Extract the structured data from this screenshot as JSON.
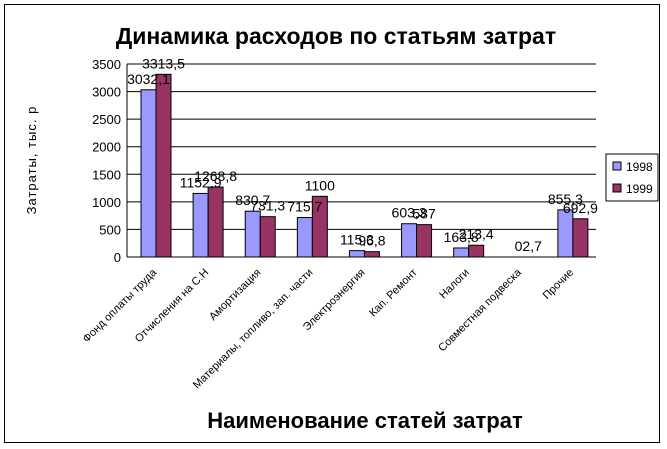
{
  "chart_data": {
    "type": "bar",
    "title": "Динамика расходов по статьям затрат",
    "xlabel": "Наименование статей затрат",
    "ylabel": "Затраты, тыс. р",
    "ylim": [
      0,
      3500
    ],
    "yticks": [
      0,
      500,
      1000,
      1500,
      2000,
      2500,
      3000,
      3500
    ],
    "grid": true,
    "legend_position": "right",
    "categories": [
      "Фонд оплаты труда",
      "Отчисления на С.Н",
      "Амортизация",
      "Материалы, топливо, зап. части",
      "Электроэнергия",
      "Кап. Ремонт",
      "Налоги",
      "Совместная подвеска",
      "Прочие"
    ],
    "series": [
      {
        "name": "1998",
        "color": "#9999FF",
        "values": [
          3032.1,
          1152.9,
          830.7,
          715.7,
          115.3,
          603.3,
          163.8,
          0,
          855.3
        ],
        "labels": [
          "3032,1",
          "1152,9",
          "830,7",
          "715,7",
          "115,3",
          "603,3",
          "163,8",
          "",
          "855,3"
        ]
      },
      {
        "name": "1999",
        "color": "#993366",
        "values": [
          3313.5,
          1268.8,
          731.3,
          1100,
          96.8,
          587,
          213.4,
          2.7,
          692.9
        ],
        "labels": [
          "3313,5",
          "1268,8",
          "731,3",
          "1100",
          "96,8",
          "587",
          "213,4",
          "02,7",
          "692,9"
        ]
      }
    ]
  }
}
